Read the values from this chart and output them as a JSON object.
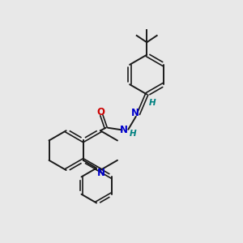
{
  "background_color": "#e8e8e8",
  "bond_color": "#1a1a1a",
  "N_color": "#0000cc",
  "O_color": "#cc0000",
  "H_color": "#008080",
  "figsize": [
    3.0,
    3.0
  ],
  "dpi": 100,
  "xlim": [
    0,
    10
  ],
  "ylim": [
    0,
    10
  ]
}
